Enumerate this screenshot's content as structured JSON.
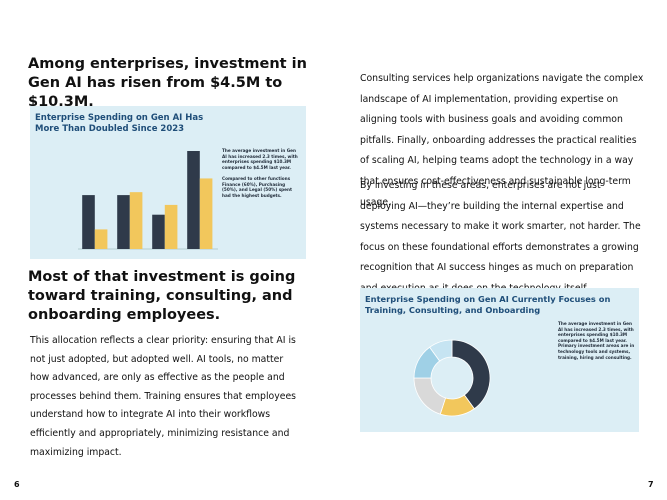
{
  "left_page": {
    "heading_1": "Among enterprises, investment in Gen AI has risen from $4.5M to $10.3M.",
    "figure_1": {
      "title": "Enterprise Spending on Gen AI Has More Than Doubled Since 2023",
      "note_1": "The average investment in Gen AI has increased 2.3 times, with enterprises spending $10.3M compared to $4.5M last year.",
      "note_2": "Compared to other functions Finance (60%), Purchasing (50%), and Legal (50%) spent had the highest budgets.",
      "chart_data": {
        "type": "bar",
        "ylim": [
          0,
          100
        ],
        "series": [
          {
            "color": "#2f3a4a",
            "values": [
              55,
              55,
              35,
              100
            ]
          },
          {
            "color": "#f2c75c",
            "values": [
              20,
              58,
              45,
              72
            ]
          }
        ]
      }
    },
    "heading_2": "Most of that investment is going toward training, consulting, and onboarding employees.",
    "paragraph": "This allocation reflects a clear priority: ensuring that AI is not just adopted, but adopted well. AI tools, no matter how advanced, are only as effective as the people and processes behind them. Training ensures that employees understand how to integrate AI into their workflows efficiently and appropriately, minimizing resistance and maximizing impact.",
    "page_number": "6"
  },
  "right_page": {
    "paragraph_1": "Consulting services help organizations navigate the complex landscape of AI implementation, providing expertise on aligning tools with business goals and avoiding common pitfalls. Finally, onboarding addresses the practical realities of scaling AI, helping teams adopt the technology in a way that ensures cost-effectiveness and sustainable long-term usage.",
    "paragraph_2": "By investing in these areas, enterprises are not just deploying AI—they’re building the internal expertise and systems necessary to make it work smarter, not harder. The focus on these foundational efforts demonstrates a growing recognition that AI success hinges as much on preparation and execution as it does on the technology itself.",
    "figure_2": {
      "title": "Enterprise Spending on Gen AI Currently Focuses on Training, Consulting, and Onboarding",
      "note_1": "The average investment in Gen AI has increased 2.3 times, with enterprises spending $10.3M compared to $4.5M last year. Primary investment areas are in technology tools and systems, training, hiring and consulting.",
      "chart_data": {
        "type": "pie",
        "values": [
          40,
          15,
          20,
          15,
          10
        ],
        "colors": [
          "#2f3a4a",
          "#f2c75c",
          "#d9d9d9",
          "#9fd0e6",
          "#c6e4f2"
        ]
      }
    },
    "page_number": "7"
  }
}
